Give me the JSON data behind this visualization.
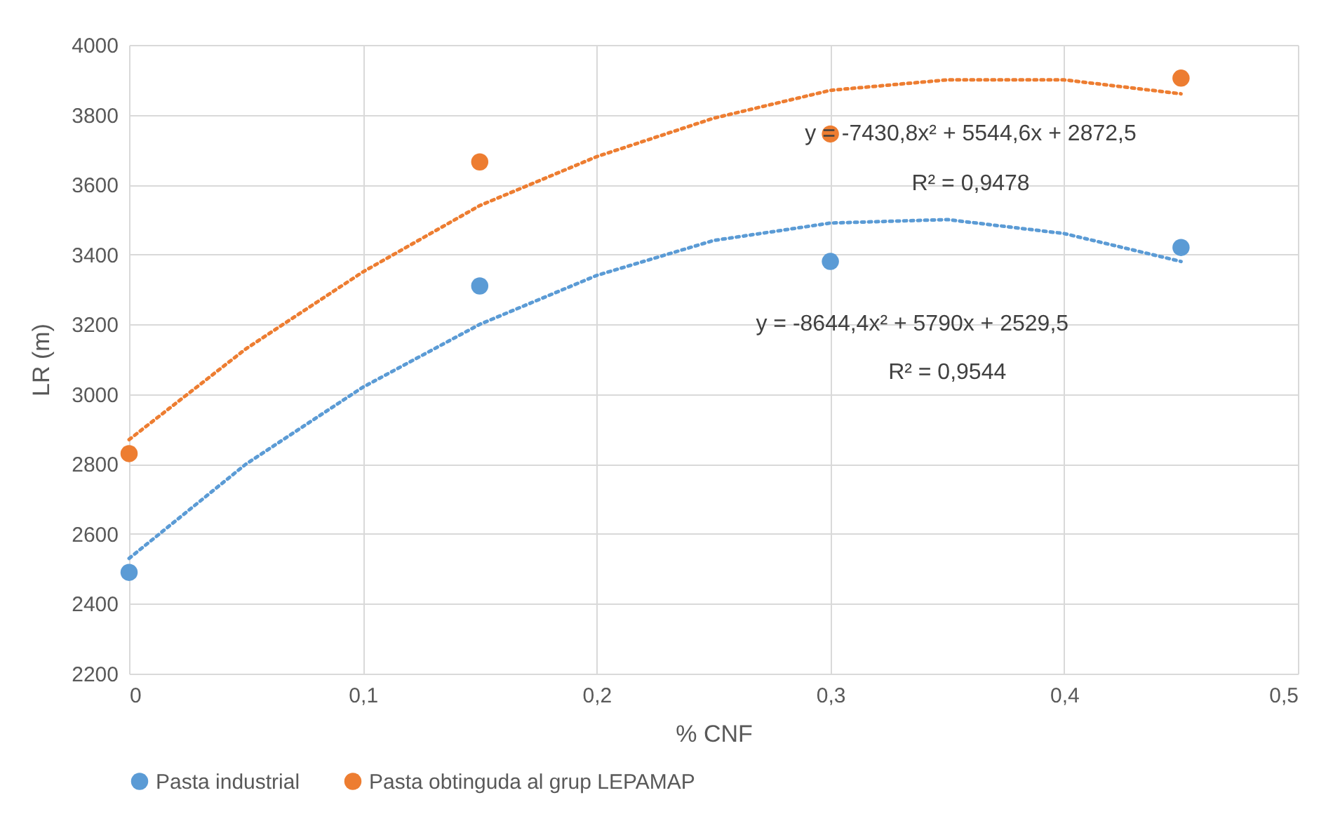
{
  "chart_data": {
    "type": "scatter",
    "xlabel": "% CNF",
    "ylabel": "LR (m)",
    "xlim": [
      0,
      0.5
    ],
    "ylim": [
      2200,
      4000
    ],
    "xticks": [
      0,
      {
        "value": 0.1,
        "label": "0,1"
      },
      {
        "value": 0.2,
        "label": "0,2"
      },
      {
        "value": 0.3,
        "label": "0,3"
      },
      {
        "value": 0.4,
        "label": "0,4"
      },
      {
        "value": 0.5,
        "label": "0,5"
      }
    ],
    "yticks": [
      2200,
      2400,
      2600,
      2800,
      3000,
      3200,
      3400,
      3600,
      3800,
      4000
    ],
    "grid": true,
    "legend": "bottom",
    "marker": "circle",
    "series": [
      {
        "type": "line",
        "marker": "none",
        "line_style": "dotted",
        "color": "#5b9bd5",
        "x": [
          0,
          0.05,
          0.1,
          0.15,
          0.2,
          0.25,
          0.3,
          0.35,
          0.4,
          0.45
        ],
        "values": [
          2530,
          2800,
          3020,
          3200,
          3340,
          3440,
          3490,
          3500,
          3460,
          3380
        ]
      },
      {
        "type": "line",
        "marker": "none",
        "line_style": "dotted",
        "color": "#ed7d31",
        "x": [
          0,
          0.05,
          0.1,
          0.15,
          0.2,
          0.25,
          0.3,
          0.35,
          0.4,
          0.45
        ],
        "values": [
          2870,
          3130,
          3350,
          3540,
          3680,
          3790,
          3870,
          3900,
          3900,
          3860
        ]
      },
      {
        "name": "Pasta industrial",
        "color": "#5b9bd5",
        "x": [
          0,
          0.15,
          0.3,
          0.45
        ],
        "values": [
          2490,
          3310,
          3380,
          3420
        ]
      },
      {
        "name": "Pasta obtinguda al grup LEPAMAP",
        "color": "#ed7d31",
        "x": [
          0,
          0.15,
          0.3,
          0.45
        ],
        "values": [
          2830,
          3665,
          3745,
          3905
        ]
      }
    ],
    "annotations": [
      "y = -7430,8x² + 5544,6x + 2872,5",
      "R² = 0,9478",
      "y = -8644,4x² + 5790x + 2529,5",
      "R² = 0,9544"
    ]
  }
}
